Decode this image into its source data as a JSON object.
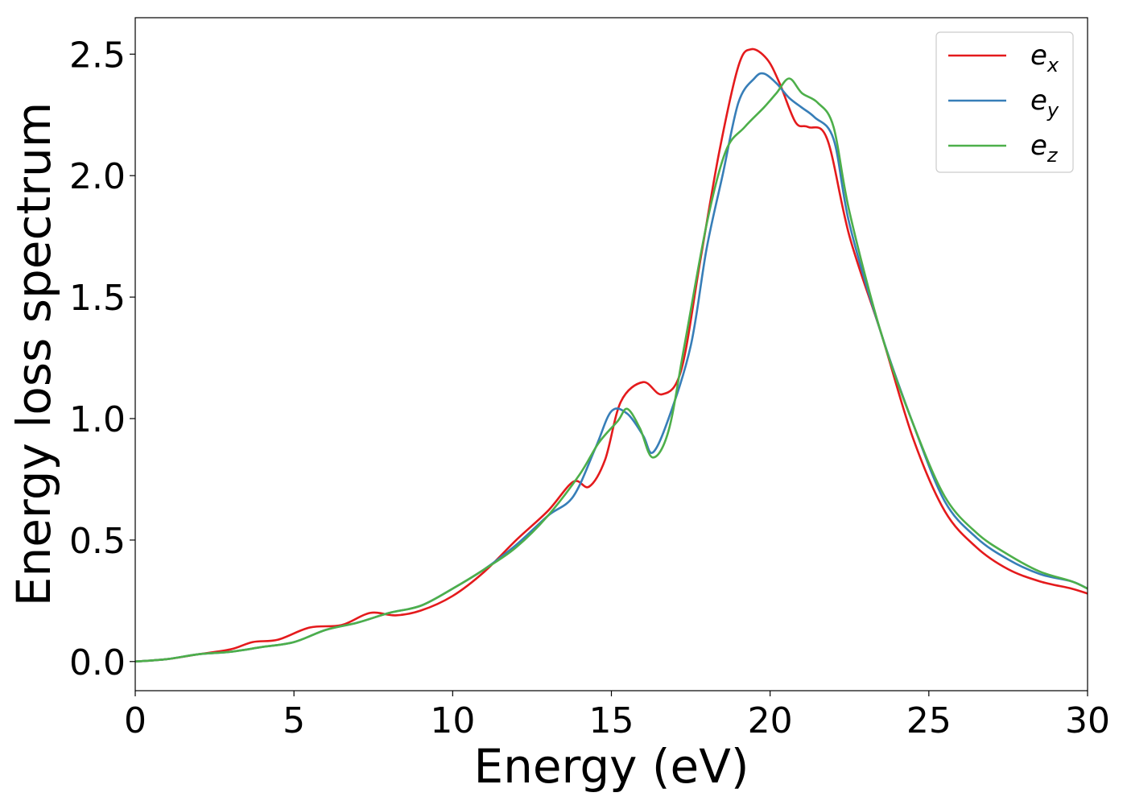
{
  "chart_data": {
    "type": "line",
    "xlabel": "Energy (eV)",
    "ylabel": "Energy loss spectrum",
    "xlim": [
      0,
      30
    ],
    "ylim": [
      -0.12,
      2.65
    ],
    "xticks": [
      0,
      5,
      10,
      15,
      20,
      25,
      30
    ],
    "xtick_labels": [
      "0",
      "5",
      "10",
      "15",
      "20",
      "25",
      "30"
    ],
    "yticks": [
      0.0,
      0.5,
      1.0,
      1.5,
      2.0,
      2.5
    ],
    "ytick_labels": [
      "0.0",
      "0.5",
      "1.0",
      "1.5",
      "2.0",
      "2.5"
    ],
    "grid": false,
    "legend_position": "top-right",
    "series": [
      {
        "name": "e_x",
        "label_base": "e",
        "label_sub": "x",
        "color": "#e41a1c",
        "x": [
          0,
          1,
          2,
          3,
          3.7,
          4.5,
          5.5,
          6.5,
          7.4,
          8.2,
          9,
          10,
          11,
          12,
          13,
          13.8,
          14.3,
          14.8,
          15.3,
          16,
          16.6,
          17.2,
          17.8,
          18.4,
          19,
          19.4,
          19.9,
          20.3,
          20.8,
          21.2,
          21.8,
          22.5,
          23.5,
          24.5,
          25.5,
          26.5,
          27.5,
          28.5,
          29.5,
          30
        ],
        "y": [
          0,
          0.01,
          0.03,
          0.05,
          0.08,
          0.09,
          0.14,
          0.15,
          0.2,
          0.19,
          0.21,
          0.27,
          0.37,
          0.5,
          0.62,
          0.74,
          0.72,
          0.83,
          1.07,
          1.15,
          1.1,
          1.2,
          1.65,
          2.1,
          2.45,
          2.52,
          2.48,
          2.38,
          2.22,
          2.2,
          2.15,
          1.75,
          1.35,
          0.92,
          0.62,
          0.47,
          0.38,
          0.33,
          0.3,
          0.28
        ]
      },
      {
        "name": "e_y",
        "label_base": "e",
        "label_sub": "y",
        "color": "#377eb8",
        "x": [
          0,
          1,
          2,
          3,
          4,
          5,
          6,
          7,
          8,
          9,
          10,
          11,
          12,
          13,
          13.8,
          14.5,
          15,
          15.5,
          16,
          16.3,
          16.8,
          17.5,
          18,
          18.5,
          19,
          19.5,
          19.8,
          20.2,
          20.6,
          21,
          21.4,
          22,
          22.5,
          23.5,
          24.5,
          25.5,
          26.5,
          27.5,
          28.5,
          29.5,
          30
        ],
        "y": [
          0,
          0.01,
          0.03,
          0.04,
          0.06,
          0.08,
          0.13,
          0.16,
          0.2,
          0.23,
          0.3,
          0.38,
          0.48,
          0.6,
          0.68,
          0.88,
          1.03,
          1.02,
          0.93,
          0.86,
          1.0,
          1.3,
          1.7,
          2.0,
          2.3,
          2.4,
          2.42,
          2.38,
          2.32,
          2.28,
          2.24,
          2.15,
          1.8,
          1.35,
          0.98,
          0.66,
          0.51,
          0.42,
          0.36,
          0.33,
          0.3
        ]
      },
      {
        "name": "e_z",
        "label_base": "e",
        "label_sub": "z",
        "color": "#4daf4a",
        "x": [
          0,
          1,
          2,
          3,
          4,
          5,
          6,
          7,
          8,
          9,
          10,
          11,
          12,
          13,
          14,
          14.6,
          15.2,
          15.5,
          15.9,
          16.3,
          16.8,
          17.3,
          18,
          18.6,
          19.2,
          19.8,
          20.2,
          20.6,
          21,
          21.5,
          22,
          22.5,
          23.5,
          24.5,
          25.5,
          26.5,
          27.5,
          28.5,
          29.5,
          30
        ],
        "y": [
          0,
          0.01,
          0.03,
          0.04,
          0.06,
          0.08,
          0.13,
          0.16,
          0.2,
          0.23,
          0.3,
          0.38,
          0.47,
          0.6,
          0.77,
          0.9,
          0.99,
          1.04,
          0.96,
          0.84,
          0.95,
          1.3,
          1.8,
          2.1,
          2.2,
          2.28,
          2.34,
          2.4,
          2.34,
          2.3,
          2.2,
          1.85,
          1.35,
          0.98,
          0.68,
          0.53,
          0.44,
          0.37,
          0.33,
          0.3
        ]
      }
    ]
  }
}
